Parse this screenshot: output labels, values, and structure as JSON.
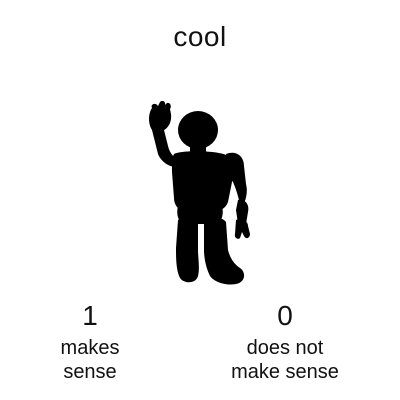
{
  "stimulus": {
    "word": "cool",
    "figure_icon": "robot-waving-silhouette-icon"
  },
  "options": [
    {
      "number": "1",
      "label_line1": "makes",
      "label_line2": "sense"
    },
    {
      "number": "0",
      "label_line1": "does not",
      "label_line2": "make sense"
    }
  ],
  "colors": {
    "background": "#ffffff",
    "text": "#111111",
    "silhouette": "#000000"
  }
}
